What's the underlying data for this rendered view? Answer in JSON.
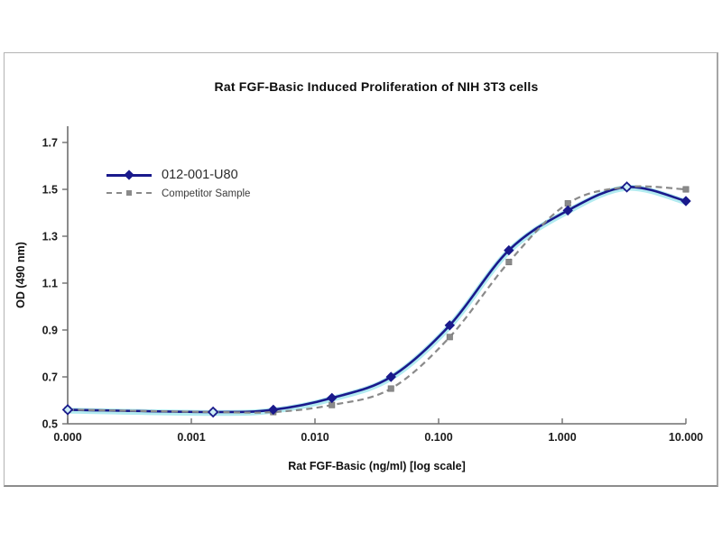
{
  "window": {
    "background_color": "#ffffff",
    "panel_border_color": "#b3b3b3"
  },
  "chart_data": {
    "type": "line",
    "title": "Rat FGF-Basic Induced Proliferation of NIH 3T3 cells",
    "xlabel": "Rat FGF-Basic (ng/ml) [log scale]",
    "ylabel": "OD (490 nm)",
    "x_scale": "log10, zero-dose control plotted at axis origin",
    "grid": false,
    "legend_position": "upper-left inside plot",
    "x_values": [
      0,
      0.0015,
      0.0046,
      0.0137,
      0.0412,
      0.123,
      0.37,
      1.11,
      3.33,
      10
    ],
    "x_tick_labels": [
      "0.000",
      "0.001",
      "0.010",
      "0.100",
      "1.000",
      "10.000"
    ],
    "y_ticks": [
      0.5,
      0.7,
      0.9,
      1.1,
      1.3,
      1.5,
      1.7
    ],
    "ylim": [
      0.5,
      1.75
    ],
    "axis_color": "#6e6e6e",
    "series": [
      {
        "name": "012-001-U80",
        "color": "#1a1a8c",
        "halo_color": "#aeeaef",
        "line_style": "solid",
        "marker": "diamond",
        "values": [
          0.56,
          0.55,
          0.56,
          0.61,
          0.7,
          0.92,
          1.24,
          1.41,
          1.51,
          1.45
        ]
      },
      {
        "name": "Competitor Sample",
        "color": "#8a8a8a",
        "line_style": "dashed",
        "marker": "square",
        "values": [
          0.56,
          0.55,
          0.55,
          0.58,
          0.65,
          0.87,
          1.19,
          1.44,
          1.51,
          1.5
        ]
      }
    ]
  }
}
